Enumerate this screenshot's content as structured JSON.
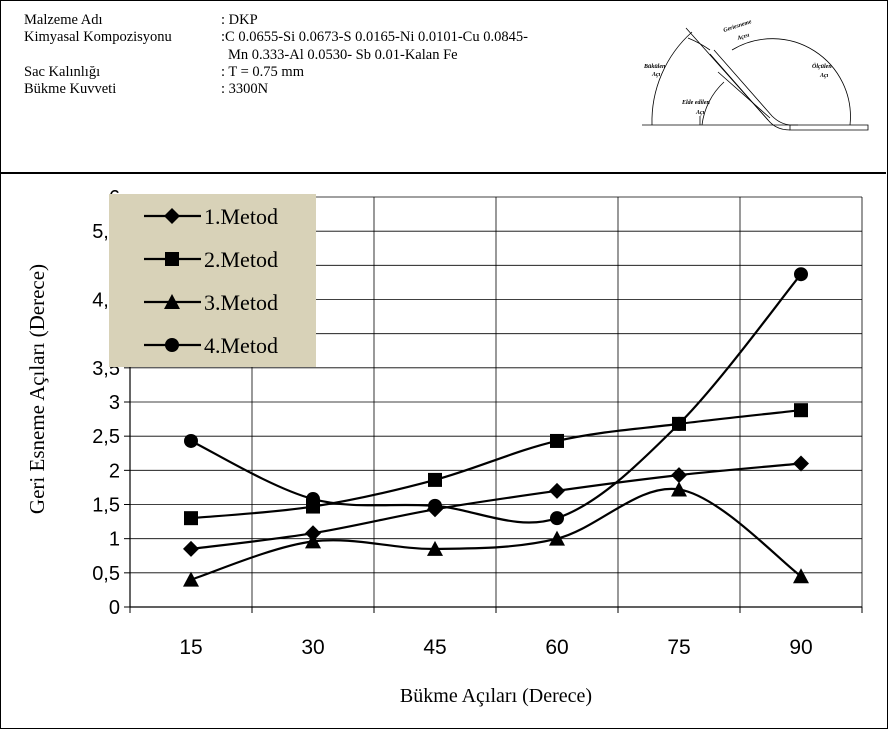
{
  "header": {
    "rows": [
      {
        "label": "Malzeme Adı",
        "value": ": DKP"
      },
      {
        "label": "Kimyasal Kompozisyonu",
        "value": ":C 0.0655-Si 0.0673-S 0.0165-Ni 0.0101-Cu 0.0845-"
      },
      {
        "label": "",
        "value": "Mn 0.333-Al 0.0530- Sb 0.01-Kalan Fe"
      },
      {
        "label": "Sac Kalınlığı",
        "value": ": T = 0.75 mm"
      },
      {
        "label": "Bükme Kuvveti",
        "value": ": 3300N"
      }
    ]
  },
  "diagram": {
    "labels": {
      "bent_angle_1": "Bükülen",
      "bent_angle_2": "Açı",
      "springback_1": "Geriesneme",
      "springback_2": "Açısı",
      "measured_1": "Ölçülen",
      "measured_2": "Açı",
      "obtained_1": "Elde edilen",
      "obtained_2": "Açı"
    }
  },
  "chart_data": {
    "type": "line",
    "xlabel": "Bükme Açıları (Derece)",
    "ylabel": "Geri Esneme Açıları (Derece)",
    "categories": [
      "15",
      "30",
      "45",
      "60",
      "75",
      "90"
    ],
    "ylim": [
      0,
      6
    ],
    "yticks": [
      "0",
      "0,5",
      "1",
      "1,5",
      "2",
      "2,5",
      "3",
      "3,5",
      "4",
      "4,5",
      "5",
      "5,5",
      "6"
    ],
    "grid": true,
    "legend_position": "top-left",
    "legend_background": "#d8d2b8",
    "series": [
      {
        "name": "1.Metod",
        "marker": "diamond",
        "values": [
          0.85,
          1.08,
          1.43,
          1.7,
          1.93,
          2.1
        ]
      },
      {
        "name": "2.Metod",
        "marker": "square",
        "values": [
          1.3,
          1.47,
          1.86,
          2.43,
          2.68,
          2.88
        ]
      },
      {
        "name": "3.Metod",
        "marker": "triangle",
        "values": [
          0.4,
          0.96,
          0.85,
          1.0,
          1.72,
          0.45
        ]
      },
      {
        "name": "4.Metod",
        "marker": "circle",
        "values": [
          2.43,
          1.58,
          1.48,
          1.3,
          2.68,
          4.87
        ]
      }
    ]
  }
}
